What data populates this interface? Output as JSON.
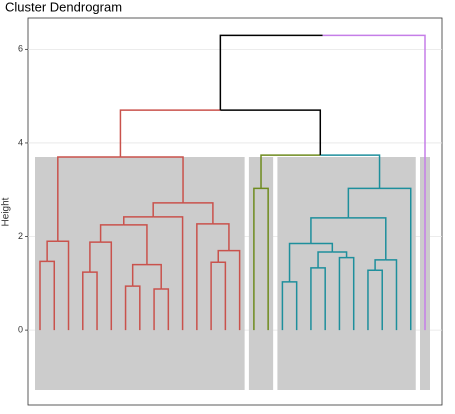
{
  "chart_data": {
    "type": "dendrogram",
    "title": "Cluster Dendrogram",
    "y_label": "Height",
    "ylim": [
      -1.6,
      6.67
    ],
    "yticks": [
      0,
      2,
      4,
      6
    ],
    "grid": true,
    "clusters": [
      {
        "color": "#c9524c",
        "size": 15
      },
      {
        "color": "#6e8b1e",
        "size": 2
      },
      {
        "color": "#1e8f9c",
        "size": 10
      },
      {
        "color": "#c57ee8",
        "size": 1
      }
    ],
    "merge": [
      [
        -1,
        -2
      ],
      [
        1,
        -3
      ],
      [
        -4,
        -5
      ],
      [
        3,
        -6
      ],
      [
        -7,
        -8
      ],
      [
        -9,
        -10
      ],
      [
        5,
        6
      ],
      [
        4,
        7
      ],
      [
        8,
        -11
      ],
      [
        -13,
        -14
      ],
      [
        10,
        -15
      ],
      [
        -12,
        11
      ],
      [
        9,
        12
      ],
      [
        2,
        13
      ],
      [
        -16,
        -17
      ],
      [
        -18,
        -19
      ],
      [
        -20,
        -21
      ],
      [
        -22,
        -23
      ],
      [
        17,
        18
      ],
      [
        16,
        19
      ],
      [
        -24,
        -25
      ],
      [
        21,
        -26
      ],
      [
        20,
        22
      ],
      [
        23,
        -27
      ],
      [
        15,
        24
      ],
      [
        14,
        25
      ],
      [
        26,
        -28
      ]
    ],
    "height": [
      1.47,
      1.9,
      1.24,
      1.88,
      0.94,
      0.88,
      1.4,
      2.25,
      2.42,
      1.45,
      1.7,
      2.27,
      2.72,
      3.7,
      3.03,
      1.03,
      1.33,
      1.55,
      1.67,
      1.85,
      1.28,
      1.5,
      2.4,
      3.03,
      3.74,
      4.7,
      6.3
    ]
  }
}
